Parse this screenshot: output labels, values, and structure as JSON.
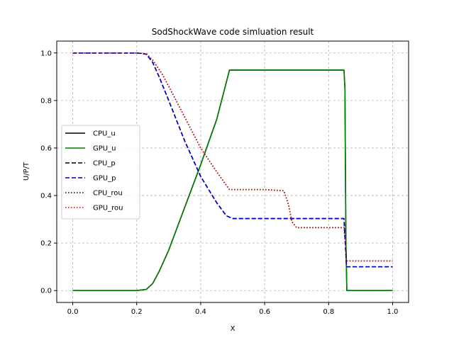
{
  "chart_data": {
    "type": "line",
    "title": "SodShockWave code simluation result",
    "xlabel": "X",
    "ylabel": "U/P/T",
    "xlim": [
      -0.05,
      1.05
    ],
    "ylim": [
      -0.05,
      1.05
    ],
    "xticks": [
      0.0,
      0.2,
      0.4,
      0.6,
      0.8,
      1.0
    ],
    "xtick_labels": [
      "0.0",
      "0.2",
      "0.4",
      "0.6",
      "0.8",
      "1.0"
    ],
    "yticks": [
      0.0,
      0.2,
      0.4,
      0.6,
      0.8,
      1.0
    ],
    "ytick_labels": [
      "0.0",
      "0.2",
      "0.4",
      "0.6",
      "0.8",
      "1.0"
    ],
    "grid": true,
    "legend_position": "center-left",
    "series": [
      {
        "name": "CPU_u",
        "color": "#000000",
        "style": "solid",
        "x": [
          0,
          0.2,
          0.23,
          0.25,
          0.27,
          0.3,
          0.35,
          0.4,
          0.45,
          0.49,
          0.6,
          0.7,
          0.8,
          0.848,
          0.851,
          0.854,
          0.857,
          0.9,
          1.0
        ],
        "y": [
          0,
          0,
          0.005,
          0.03,
          0.08,
          0.17,
          0.35,
          0.53,
          0.72,
          0.928,
          0.928,
          0.928,
          0.928,
          0.928,
          0.85,
          0.2,
          0.0,
          0.0,
          0.0
        ]
      },
      {
        "name": "GPU_u",
        "color": "#008000",
        "style": "solid",
        "x": [
          0,
          0.2,
          0.23,
          0.25,
          0.27,
          0.3,
          0.35,
          0.4,
          0.45,
          0.49,
          0.6,
          0.7,
          0.8,
          0.848,
          0.851,
          0.854,
          0.857,
          0.9,
          1.0
        ],
        "y": [
          0,
          0,
          0.005,
          0.03,
          0.08,
          0.17,
          0.35,
          0.53,
          0.72,
          0.928,
          0.928,
          0.928,
          0.928,
          0.928,
          0.85,
          0.2,
          0.0,
          0.0,
          0.0
        ]
      },
      {
        "name": "CPU_p",
        "color": "#000000",
        "style": "dashed",
        "x": [
          0,
          0.2,
          0.23,
          0.25,
          0.27,
          0.3,
          0.35,
          0.4,
          0.45,
          0.48,
          0.5,
          0.6,
          0.7,
          0.8,
          0.848,
          0.852,
          0.856,
          0.9,
          1.0
        ],
        "y": [
          1,
          1,
          0.995,
          0.96,
          0.9,
          0.8,
          0.63,
          0.48,
          0.37,
          0.315,
          0.303,
          0.303,
          0.303,
          0.303,
          0.303,
          0.2,
          0.1,
          0.1,
          0.1
        ]
      },
      {
        "name": "GPU_p",
        "color": "#0000cc",
        "style": "dashed",
        "x": [
          0,
          0.2,
          0.23,
          0.25,
          0.27,
          0.3,
          0.35,
          0.4,
          0.45,
          0.48,
          0.5,
          0.6,
          0.7,
          0.8,
          0.848,
          0.852,
          0.856,
          0.9,
          1.0
        ],
        "y": [
          1,
          1,
          0.995,
          0.96,
          0.9,
          0.8,
          0.63,
          0.48,
          0.37,
          0.315,
          0.303,
          0.303,
          0.303,
          0.303,
          0.303,
          0.2,
          0.1,
          0.1,
          0.1
        ]
      },
      {
        "name": "CPU_rou",
        "color": "#000000",
        "style": "dotted",
        "x": [
          0,
          0.2,
          0.23,
          0.25,
          0.28,
          0.3,
          0.35,
          0.4,
          0.45,
          0.49,
          0.55,
          0.6,
          0.66,
          0.675,
          0.685,
          0.7,
          0.75,
          0.8,
          0.848,
          0.852,
          0.856,
          0.9,
          1.0
        ],
        "y": [
          1,
          1,
          0.997,
          0.97,
          0.91,
          0.86,
          0.73,
          0.6,
          0.5,
          0.425,
          0.425,
          0.425,
          0.42,
          0.36,
          0.29,
          0.265,
          0.265,
          0.265,
          0.265,
          0.2,
          0.125,
          0.125,
          0.125
        ]
      },
      {
        "name": "GPU_rou",
        "color": "#cc0000",
        "style": "dotted",
        "x": [
          0,
          0.2,
          0.23,
          0.25,
          0.28,
          0.3,
          0.35,
          0.4,
          0.45,
          0.49,
          0.55,
          0.6,
          0.66,
          0.675,
          0.685,
          0.7,
          0.75,
          0.8,
          0.848,
          0.852,
          0.856,
          0.9,
          1.0
        ],
        "y": [
          1,
          1,
          0.997,
          0.97,
          0.91,
          0.86,
          0.73,
          0.6,
          0.5,
          0.425,
          0.425,
          0.425,
          0.42,
          0.36,
          0.29,
          0.265,
          0.265,
          0.265,
          0.265,
          0.2,
          0.125,
          0.125,
          0.125
        ]
      }
    ]
  }
}
